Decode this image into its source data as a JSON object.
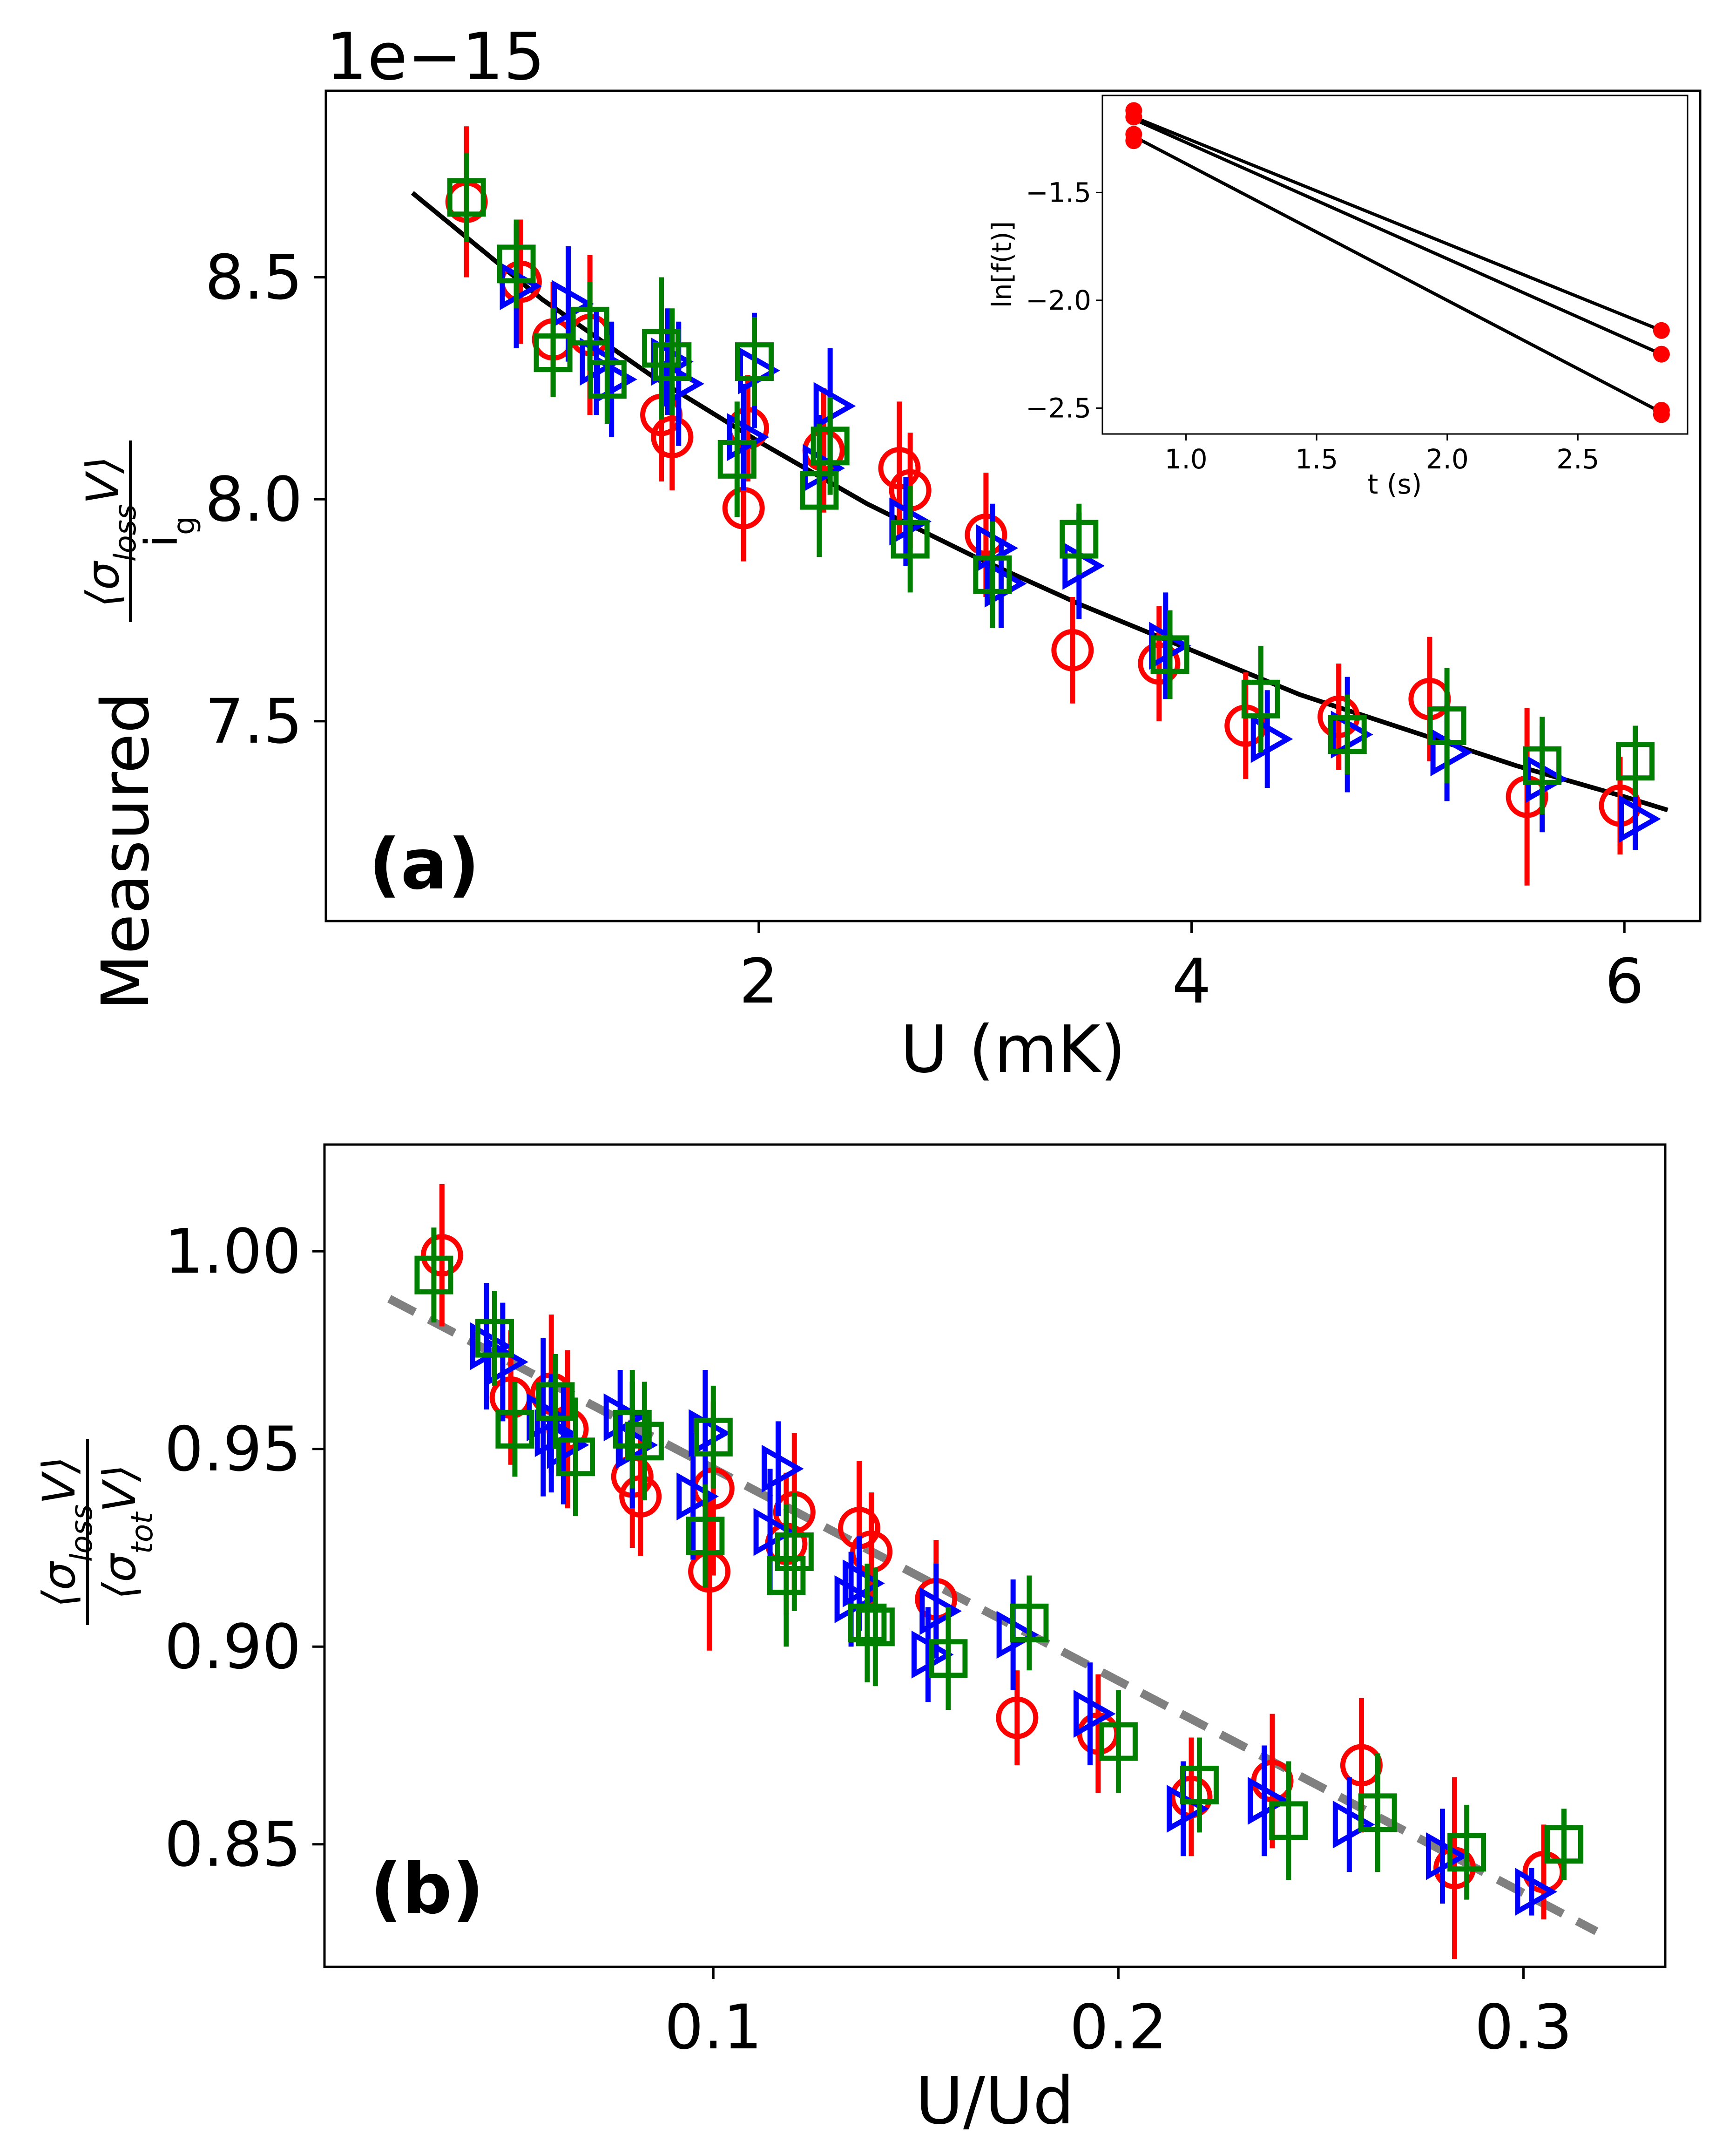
{
  "colors": {
    "red": "#ff0000",
    "blue": "#0000ff",
    "green": "#008000",
    "black": "#000000",
    "gray": "#808080"
  },
  "chart_data": [
    {
      "id": "a",
      "type": "scatter",
      "panel_label": "(a)",
      "offset_text": "1e−15",
      "xlabel": "U (mK)",
      "ylabel_prefix": "Measured",
      "ylabel_num": "⟨σ",
      "ylabel_num_sub": "loss",
      "ylabel_num_v": "V⟩",
      "ylabel_den": "i",
      "ylabel_den_sub": "g",
      "xlim": [
        0.0,
        6.35
      ],
      "ylim": [
        7.05,
        8.92
      ],
      "xticks": [
        2,
        4,
        6
      ],
      "xtick_labels": [
        "2",
        "4",
        "6"
      ],
      "yticks": [
        7.5,
        8.0,
        8.5
      ],
      "ytick_labels": [
        "7.5",
        "8.0",
        "8.5"
      ],
      "fit_curve": {
        "style": "solid",
        "color": "black",
        "x": [
          0.4,
          1.0,
          1.5,
          2.0,
          2.5,
          3.0,
          3.5,
          4.0,
          4.5,
          5.0,
          5.5,
          6.0,
          6.2
        ],
        "y": [
          8.69,
          8.45,
          8.28,
          8.13,
          7.99,
          7.87,
          7.76,
          7.66,
          7.56,
          7.48,
          7.4,
          7.33,
          7.3
        ]
      },
      "series": [
        {
          "name": "red-circle",
          "marker": "circle",
          "color": "red",
          "x": [
            0.65,
            0.9,
            1.05,
            1.22,
            1.55,
            1.6,
            1.93,
            1.95,
            2.3,
            2.65,
            2.7,
            3.05,
            3.45,
            3.85,
            4.25,
            4.68,
            5.1,
            5.55,
            5.98
          ],
          "y": [
            8.67,
            8.49,
            8.36,
            8.37,
            8.19,
            8.14,
            7.98,
            8.16,
            8.11,
            8.07,
            8.02,
            7.92,
            7.66,
            7.63,
            7.49,
            7.51,
            7.55,
            7.33,
            7.31
          ],
          "yerr": [
            0.17,
            0.14,
            0.13,
            0.18,
            0.15,
            0.12,
            0.12,
            0.12,
            0.14,
            0.15,
            0.13,
            0.14,
            0.12,
            0.13,
            0.12,
            0.12,
            0.14,
            0.2,
            0.11
          ]
        },
        {
          "name": "blue-triangle",
          "marker": "triangle-right",
          "color": "blue",
          "x": [
            0.88,
            1.12,
            1.25,
            1.32,
            1.58,
            1.63,
            1.93,
            1.98,
            2.28,
            2.33,
            2.68,
            3.08,
            3.12,
            3.48,
            3.88,
            4.35,
            4.72,
            5.18,
            5.62,
            6.05
          ],
          "y": [
            8.48,
            8.44,
            8.31,
            8.27,
            8.31,
            8.26,
            8.14,
            8.29,
            8.07,
            8.21,
            7.95,
            7.89,
            7.81,
            7.85,
            7.67,
            7.46,
            7.47,
            7.43,
            7.37,
            7.28
          ],
          "yerr": [
            0.14,
            0.13,
            0.12,
            0.13,
            0.12,
            0.14,
            0.12,
            0.13,
            0.12,
            0.13,
            0.1,
            0.1,
            0.1,
            0.12,
            0.12,
            0.11,
            0.13,
            0.11,
            0.12,
            0.07
          ]
        },
        {
          "name": "green-square",
          "marker": "square",
          "color": "green",
          "x": [
            0.65,
            0.88,
            1.05,
            1.22,
            1.3,
            1.55,
            1.6,
            1.9,
            1.98,
            2.28,
            2.33,
            2.7,
            3.08,
            3.48,
            3.9,
            4.32,
            4.72,
            5.18,
            5.62,
            6.05
          ],
          "y": [
            8.68,
            8.53,
            8.33,
            8.39,
            8.27,
            8.34,
            8.31,
            8.09,
            8.31,
            8.02,
            8.12,
            7.91,
            7.83,
            7.91,
            7.65,
            7.55,
            7.47,
            7.49,
            7.4,
            7.41
          ],
          "yerr": [
            0.1,
            0.1,
            0.1,
            0.1,
            0.1,
            0.16,
            0.12,
            0.13,
            0.1,
            0.15,
            0.11,
            0.12,
            0.12,
            0.08,
            0.1,
            0.12,
            0.09,
            0.13,
            0.11,
            0.08
          ]
        }
      ],
      "inset": {
        "type": "scatter",
        "xlabel": "t (s)",
        "ylabel": "ln[f(t)]",
        "xlim": [
          0.68,
          2.92
        ],
        "ylim": [
          -2.62,
          -1.05
        ],
        "xticks": [
          1.0,
          1.5,
          2.0,
          2.5
        ],
        "xtick_labels": [
          "1.0",
          "1.5",
          "2.0",
          "2.5"
        ],
        "yticks": [
          -1.5,
          -2.0,
          -2.5
        ],
        "ytick_labels": [
          "−1.5",
          "−2.0",
          "−2.5"
        ],
        "lines": [
          {
            "x": [
              0.8,
              2.82
            ],
            "y": [
              -1.15,
              -2.14
            ]
          },
          {
            "x": [
              0.8,
              2.82
            ],
            "y": [
              -1.16,
              -2.25
            ]
          },
          {
            "x": [
              0.8,
              2.82
            ],
            "y": [
              -1.24,
              -2.52
            ]
          }
        ],
        "points": {
          "color": "red",
          "x": [
            0.8,
            0.8,
            0.8,
            0.8,
            2.82,
            2.82,
            2.82,
            2.82
          ],
          "y": [
            -1.12,
            -1.15,
            -1.23,
            -1.26,
            -2.14,
            -2.25,
            -2.51,
            -2.53
          ]
        }
      }
    },
    {
      "id": "b",
      "type": "scatter",
      "panel_label": "(b)",
      "xlabel": "U/Ud",
      "ylabel_num": "⟨σ",
      "ylabel_num_sub": "loss",
      "ylabel_num_v": "V⟩",
      "ylabel_den": "⟨σ",
      "ylabel_den_sub": "tot",
      "ylabel_den_v": "V⟩",
      "xlim": [
        0.004,
        0.335
      ],
      "ylim": [
        0.819,
        1.027
      ],
      "xticks": [
        0.1,
        0.2,
        0.3
      ],
      "xtick_labels": [
        "0.1",
        "0.2",
        "0.3"
      ],
      "yticks": [
        0.85,
        0.9,
        0.95,
        1.0
      ],
      "ytick_labels": [
        "0.85",
        "0.90",
        "0.95",
        "1.00"
      ],
      "fit_line": {
        "style": "dashed",
        "color": "gray",
        "x": [
          0.02,
          0.318
        ],
        "y": [
          0.988,
          0.828
        ]
      },
      "series": [
        {
          "name": "red-circle",
          "marker": "circle",
          "color": "red",
          "x": [
            0.033,
            0.05,
            0.06,
            0.064,
            0.08,
            0.082,
            0.099,
            0.1,
            0.118,
            0.12,
            0.136,
            0.139,
            0.155,
            0.175,
            0.195,
            0.218,
            0.238,
            0.26,
            0.283,
            0.305
          ],
          "y": [
            0.999,
            0.963,
            0.964,
            0.955,
            0.943,
            0.938,
            0.919,
            0.94,
            0.926,
            0.934,
            0.93,
            0.924,
            0.912,
            0.882,
            0.878,
            0.862,
            0.866,
            0.87,
            0.844,
            0.843
          ],
          "yerr": [
            0.018,
            0.017,
            0.02,
            0.02,
            0.018,
            0.015,
            0.02,
            0.022,
            0.018,
            0.02,
            0.017,
            0.015,
            0.015,
            0.012,
            0.015,
            0.015,
            0.017,
            0.017,
            0.023,
            0.012
          ]
        },
        {
          "name": "blue-triangle",
          "marker": "triangle-right",
          "color": "blue",
          "x": [
            0.044,
            0.048,
            0.058,
            0.06,
            0.063,
            0.077,
            0.08,
            0.095,
            0.098,
            0.114,
            0.116,
            0.134,
            0.136,
            0.153,
            0.155,
            0.174,
            0.193,
            0.216,
            0.236,
            0.257,
            0.28,
            0.302
          ],
          "y": [
            0.976,
            0.972,
            0.958,
            0.954,
            0.951,
            0.958,
            0.951,
            0.938,
            0.954,
            0.929,
            0.945,
            0.912,
            0.916,
            0.898,
            0.909,
            0.903,
            0.883,
            0.859,
            0.861,
            0.855,
            0.847,
            0.838
          ],
          "yerr": [
            0.016,
            0.015,
            0.02,
            0.015,
            0.015,
            0.012,
            0.016,
            0.016,
            0.016,
            0.016,
            0.012,
            0.012,
            0.012,
            0.012,
            0.012,
            0.014,
            0.013,
            0.012,
            0.014,
            0.012,
            0.012,
            0.006
          ]
        },
        {
          "name": "green-square",
          "marker": "square",
          "color": "green",
          "x": [
            0.031,
            0.046,
            0.051,
            0.061,
            0.066,
            0.08,
            0.083,
            0.098,
            0.1,
            0.118,
            0.12,
            0.138,
            0.14,
            0.158,
            0.178,
            0.2,
            0.22,
            0.242,
            0.264,
            0.286,
            0.31
          ],
          "y": [
            0.994,
            0.978,
            0.955,
            0.962,
            0.948,
            0.955,
            0.952,
            0.928,
            0.953,
            0.918,
            0.924,
            0.906,
            0.905,
            0.897,
            0.906,
            0.876,
            0.865,
            0.856,
            0.858,
            0.848,
            0.85
          ],
          "yerr": [
            0.012,
            0.012,
            0.012,
            0.012,
            0.015,
            0.015,
            0.015,
            0.013,
            0.013,
            0.018,
            0.015,
            0.015,
            0.015,
            0.013,
            0.012,
            0.013,
            0.012,
            0.015,
            0.015,
            0.012,
            0.009
          ]
        }
      ]
    }
  ]
}
